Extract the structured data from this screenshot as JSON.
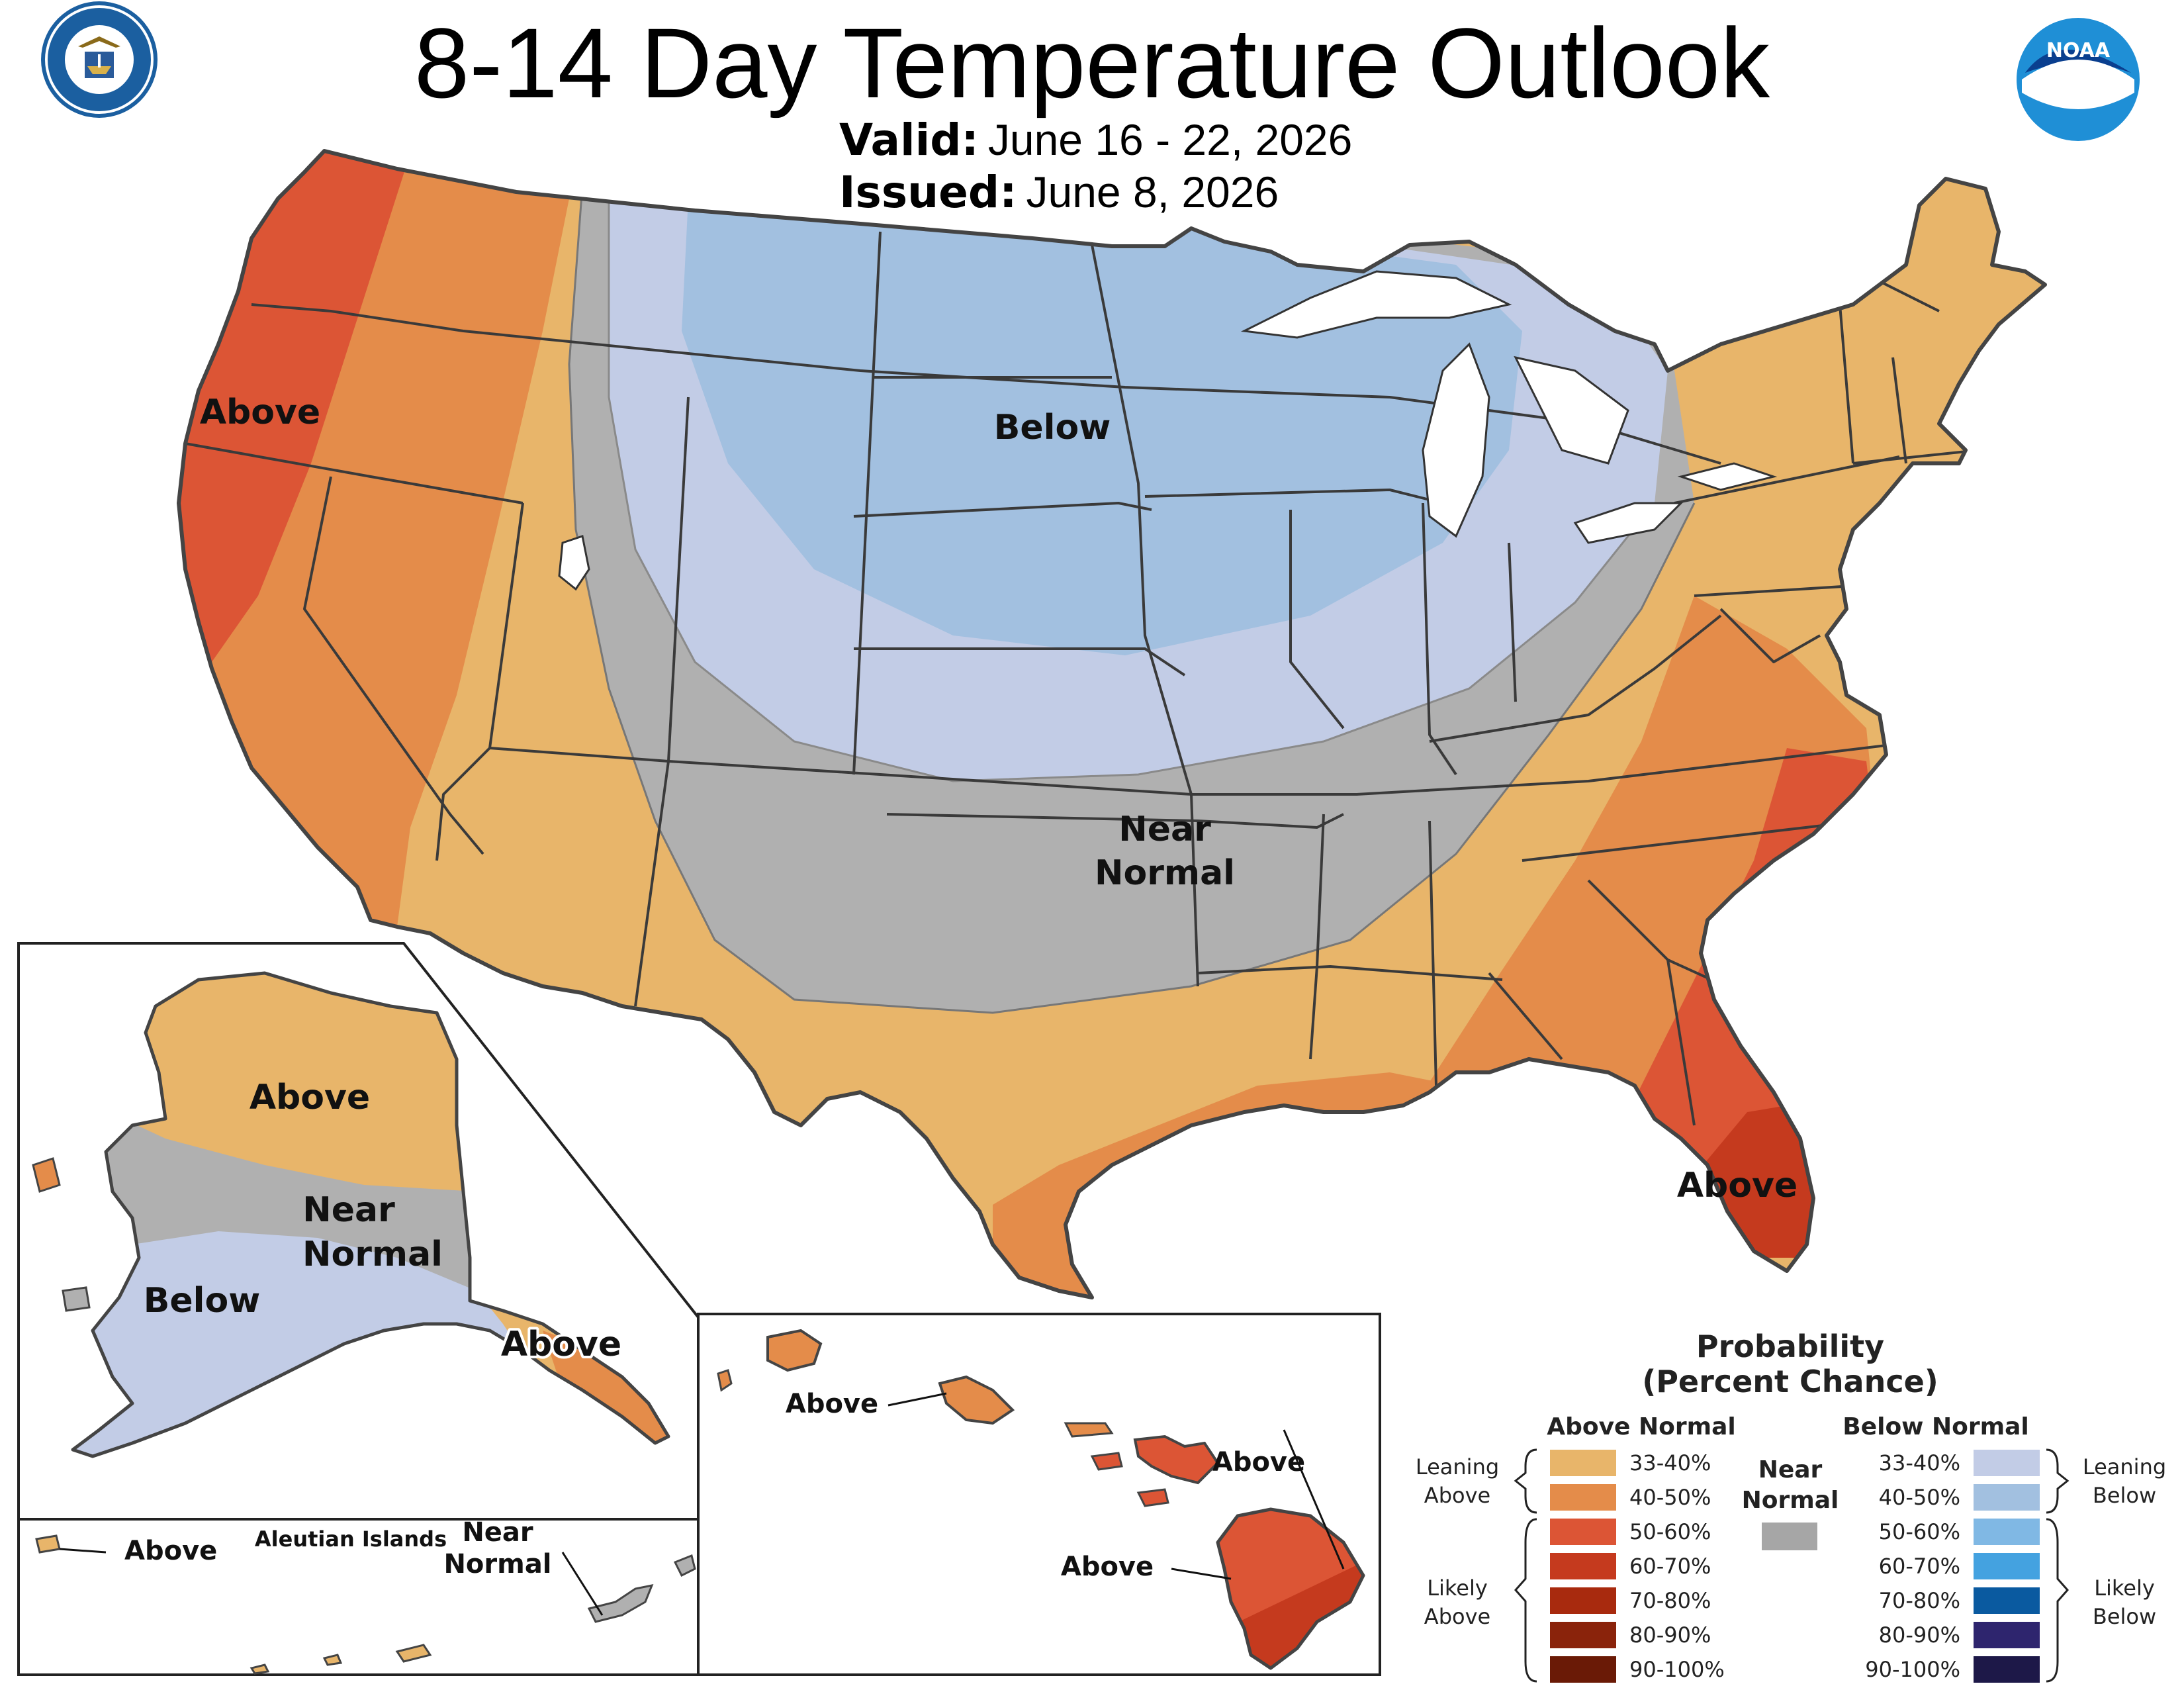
{
  "title": "8-14 Day Temperature Outlook",
  "valid_label": "Valid:",
  "valid_value": "June 16 - 22, 2026",
  "issued_label": "Issued:",
  "issued_value": "June 8, 2026",
  "logos": {
    "left": {
      "icon": "doc-seal-icon",
      "text": "DEPARTMENT OF COMMERCE · UNITED STATES OF AMERICA"
    },
    "right": {
      "icon": "noaa-logo-icon",
      "text": "NOAA"
    }
  },
  "map_labels": {
    "west": "Above",
    "north": "Below",
    "center_1": "Near",
    "center_2": "Normal",
    "florida": "Above"
  },
  "alaska": {
    "north": "Above",
    "mid_1": "Near",
    "mid_2": "Normal",
    "south": "Below",
    "panhandle": "Above"
  },
  "aleutians": {
    "title": "Aleutian Islands",
    "west": "Above",
    "east_1": "Near",
    "east_2": "Normal"
  },
  "hawaii": {
    "label_1": "Above",
    "label_2": "Above",
    "label_3": "Above"
  },
  "legend": {
    "title_1": "Probability",
    "title_2": "(Percent Chance)",
    "above_header": "Above Normal",
    "below_header": "Below Normal",
    "near_1": "Near",
    "near_2": "Normal",
    "near_color": "#a6a6a6",
    "leaning_above_1": "Leaning",
    "leaning_above_2": "Above",
    "likely_above_1": "Likely",
    "likely_above_2": "Above",
    "leaning_below_1": "Leaning",
    "leaning_below_2": "Below",
    "likely_below_1": "Likely",
    "likely_below_2": "Below",
    "above": [
      {
        "range": "33-40%",
        "color": "#e8b56a"
      },
      {
        "range": "40-50%",
        "color": "#e48c4a"
      },
      {
        "range": "50-60%",
        "color": "#dc5535"
      },
      {
        "range": "60-70%",
        "color": "#c53a1e"
      },
      {
        "range": "70-80%",
        "color": "#a82a0e"
      },
      {
        "range": "80-90%",
        "color": "#8a230b"
      },
      {
        "range": "90-100%",
        "color": "#6a1a06"
      }
    ],
    "below": [
      {
        "range": "33-40%",
        "color": "#c2cce6"
      },
      {
        "range": "40-50%",
        "color": "#a2c0e0"
      },
      {
        "range": "50-60%",
        "color": "#80b8e4"
      },
      {
        "range": "60-70%",
        "color": "#44a2e0"
      },
      {
        "range": "70-80%",
        "color": "#0a5aa0"
      },
      {
        "range": "80-90%",
        "color": "#2e256e"
      },
      {
        "range": "90-100%",
        "color": "#1d1848"
      }
    ]
  },
  "colors": {
    "above_33": "#e8b56a",
    "above_40": "#e48c4a",
    "above_50": "#dc5535",
    "above_60": "#c53a1e",
    "near": "#b0b0b0",
    "below_33": "#c2cce6",
    "below_40": "#a2c0e0",
    "border": "#3a3a3a"
  }
}
